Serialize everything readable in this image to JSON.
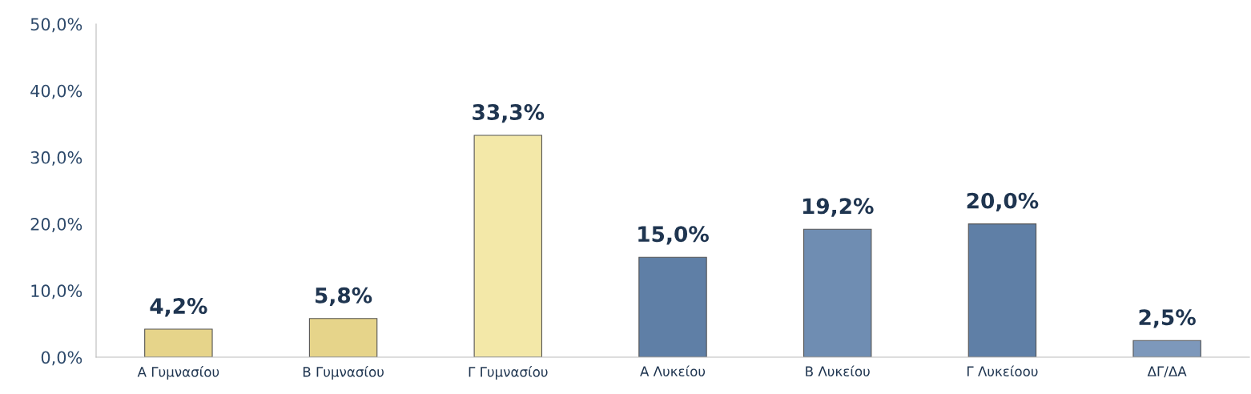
{
  "chart_data": {
    "type": "bar",
    "categories": [
      "Α Γυμνασίου",
      "Β Γυμνασίου",
      "Γ Γυμνασίου",
      "Α Λυκείου",
      "Β Λυκείου",
      "Γ Λυκείοου",
      "ΔΓ/ΔΑ"
    ],
    "values": [
      4.2,
      5.8,
      33.3,
      15.0,
      19.2,
      20.0,
      2.5
    ],
    "value_labels": [
      "4,2%",
      "5,8%",
      "33,3%",
      "15,0%",
      "19,2%",
      "20,0%",
      "2,5%"
    ],
    "colors": [
      "#e6d48a",
      "#e6d48a",
      "#f3e8a8",
      "#5f7fa6",
      "#6f8db2",
      "#5f7fa6",
      "#7d98bb"
    ],
    "ylim": [
      0,
      50
    ],
    "yticks": [
      {
        "value": 0,
        "label": "0,0%"
      },
      {
        "value": 10,
        "label": "10,0%"
      },
      {
        "value": 20,
        "label": "20,0%"
      },
      {
        "value": 30,
        "label": "30,0%"
      },
      {
        "value": 40,
        "label": "40,0%"
      },
      {
        "value": 50,
        "label": "50,0%"
      }
    ],
    "grid": false
  }
}
